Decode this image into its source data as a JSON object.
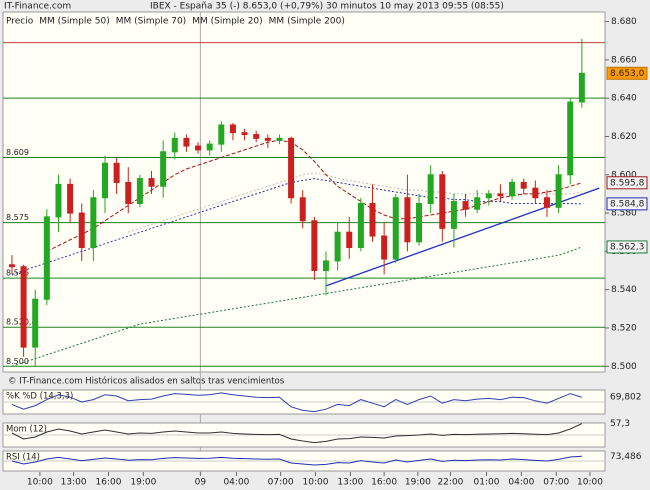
{
  "chart_data": {
    "type": "candlestick",
    "site": "IT-Finance.com",
    "title": "IBEX - España 35 (-)   8.653,0 (+0,79%)    30 minutos   10 may 2013 09:55 (08:55)",
    "footer": "© IT-Finance.com   Históricos alisados en saltos tras vencimientos",
    "price_name": "Precio",
    "up_color": "#22a822",
    "down_color": "#cc2020",
    "last_label": "8.653,0",
    "xlim": [
      -0.77,
      50.99
    ],
    "ylim": [
      8.497,
      8.685
    ],
    "yticks": [
      {
        "value": 8.5,
        "label": "8.500"
      },
      {
        "value": 8.52,
        "label": "8.520"
      },
      {
        "value": 8.54,
        "label": "8.540"
      },
      {
        "value": 8.56,
        "label": "8.560"
      },
      {
        "value": 8.58,
        "label": "8.580"
      },
      {
        "value": 8.6,
        "label": "8.600"
      },
      {
        "value": 8.62,
        "label": "8.620"
      },
      {
        "value": 8.64,
        "label": "8.640"
      },
      {
        "value": 8.66,
        "label": "8.660"
      },
      {
        "value": 8.68,
        "label": "8.680"
      }
    ],
    "xticks": [
      {
        "value": 2.4,
        "label": "10:00"
      },
      {
        "value": 5.3,
        "label": "13:00"
      },
      {
        "value": 8.3,
        "label": "16:00"
      },
      {
        "value": 11.3,
        "label": "19:00"
      },
      {
        "value": 16.2,
        "label": "09"
      },
      {
        "value": 19.3,
        "label": "04:00"
      },
      {
        "value": 23.1,
        "label": "07:00"
      },
      {
        "value": 26.1,
        "label": "10:00"
      },
      {
        "value": 29.1,
        "label": "13:00"
      },
      {
        "value": 32,
        "label": "16:00"
      },
      {
        "value": 34.9,
        "label": "19:00"
      },
      {
        "value": 37.7,
        "label": "22:00"
      },
      {
        "value": 40.8,
        "label": "01:00"
      },
      {
        "value": 43.8,
        "label": "04:00"
      },
      {
        "value": 46.8,
        "label": "07:00"
      },
      {
        "value": 49.7,
        "label": "10:00"
      }
    ],
    "levels": [
      {
        "value": 8.669,
        "color": "#c04040"
      },
      {
        "value": 8.64,
        "color": "#208020"
      },
      {
        "value": 8.609,
        "label": "8.609",
        "color": "#208020"
      },
      {
        "value": 8.575,
        "label": "8.575",
        "color": "#208020"
      },
      {
        "value": 8.546,
        "label": "8.546",
        "color": "#208020"
      },
      {
        "value": 8.5204,
        "label": "8.520,4",
        "color": "#208020"
      },
      {
        "value": 8.5,
        "label": "8.500",
        "color": "#208020"
      }
    ],
    "open": [
      8.553,
      8.552,
      8.51,
      8.535,
      8.578,
      8.595,
      8.58,
      8.562,
      8.588,
      8.606,
      8.596,
      8.585,
      8.598,
      8.594,
      8.612,
      8.619,
      8.615,
      8.613,
      8.616,
      8.626,
      8.622,
      8.621,
      8.619,
      8.618,
      8.619,
      8.588,
      8.576,
      8.55,
      8.555,
      8.57,
      8.562,
      8.585,
      8.568,
      8.556,
      8.588,
      8.565,
      8.585,
      8.6,
      8.572,
      8.586,
      8.582,
      8.588,
      8.59,
      8.589,
      8.596,
      8.593,
      8.588,
      8.583,
      8.6,
      8.638
    ],
    "high": [
      8.558,
      8.553,
      8.54,
      8.582,
      8.6,
      8.598,
      8.585,
      8.592,
      8.61,
      8.609,
      8.604,
      8.6,
      8.602,
      8.618,
      8.622,
      8.621,
      8.617,
      8.618,
      8.628,
      8.627,
      8.624,
      8.623,
      8.621,
      8.621,
      8.62,
      8.592,
      8.578,
      8.56,
      8.575,
      8.578,
      8.588,
      8.595,
      8.575,
      8.59,
      8.6,
      8.59,
      8.605,
      8.602,
      8.59,
      8.59,
      8.592,
      8.592,
      8.595,
      8.598,
      8.598,
      8.597,
      8.592,
      8.605,
      8.64,
      8.671
    ],
    "low": [
      8.548,
      8.505,
      8.5,
      8.532,
      8.57,
      8.575,
      8.555,
      8.555,
      8.58,
      8.59,
      8.58,
      8.583,
      8.59,
      8.588,
      8.608,
      8.612,
      8.611,
      8.61,
      8.612,
      8.618,
      8.618,
      8.617,
      8.614,
      8.616,
      8.585,
      8.572,
      8.545,
      8.537,
      8.55,
      8.556,
      8.56,
      8.565,
      8.548,
      8.554,
      8.56,
      8.563,
      8.58,
      8.565,
      8.562,
      8.578,
      8.58,
      8.584,
      8.586,
      8.587,
      8.59,
      8.585,
      8.578,
      8.58,
      8.595,
      8.635
    ],
    "close": [
      8.552,
      8.51,
      8.535,
      8.578,
      8.595,
      8.58,
      8.562,
      8.588,
      8.606,
      8.596,
      8.585,
      8.598,
      8.594,
      8.612,
      8.619,
      8.615,
      8.613,
      8.616,
      8.626,
      8.622,
      8.621,
      8.619,
      8.618,
      8.619,
      8.588,
      8.576,
      8.55,
      8.555,
      8.57,
      8.562,
      8.585,
      8.568,
      8.556,
      8.588,
      8.565,
      8.585,
      8.6,
      8.572,
      8.586,
      8.582,
      8.588,
      8.59,
      8.589,
      8.596,
      8.593,
      8.588,
      8.583,
      8.6,
      8.638,
      8.653
    ],
    "series": [
      {
        "name": "MM (Simple 50)",
        "color": "#bdbdbd",
        "dash": "2,2",
        "values": [
          null,
          null,
          null,
          null,
          null,
          null,
          null,
          null,
          null,
          null,
          8.57,
          8.572,
          8.574,
          8.576,
          8.578,
          8.58,
          8.582,
          8.584,
          8.586,
          8.588,
          8.59,
          8.592,
          8.594,
          8.596,
          8.598,
          8.6,
          8.601,
          8.6,
          8.598,
          8.597,
          8.596,
          8.595,
          8.594,
          8.593,
          8.592,
          8.592,
          8.591,
          8.591,
          8.59,
          8.59,
          8.59,
          8.59,
          8.59,
          8.59,
          8.59,
          8.59,
          8.59,
          8.59,
          8.59,
          8.591
        ]
      },
      {
        "name": "MM (Simple 70)",
        "color": "#2030b0",
        "dash": "2,2",
        "last_label": "8.584,8",
        "values": [
          8.548,
          8.55,
          8.552,
          8.554,
          8.556,
          8.558,
          8.56,
          8.562,
          8.564,
          8.566,
          8.568,
          8.57,
          8.572,
          8.574,
          8.576,
          8.578,
          8.58,
          8.582,
          8.584,
          8.586,
          8.588,
          8.59,
          8.592,
          8.594,
          8.596,
          8.597,
          8.598,
          8.597,
          8.596,
          8.595,
          8.594,
          8.593,
          8.592,
          8.591,
          8.59,
          8.589,
          8.588,
          8.588,
          8.587,
          8.587,
          8.586,
          8.586,
          8.586,
          8.585,
          8.585,
          8.585,
          8.585,
          8.585,
          8.585,
          8.5848
        ]
      },
      {
        "name": "MM (Simple 20)",
        "color": "#a01818",
        "dash": "4,2",
        "last_label": "8.595,8",
        "values": [
          null,
          null,
          null,
          8.56,
          8.563,
          8.566,
          8.569,
          8.572,
          8.576,
          8.58,
          8.584,
          8.588,
          8.592,
          8.596,
          8.6,
          8.603,
          8.605,
          8.607,
          8.609,
          8.611,
          8.613,
          8.615,
          8.617,
          8.618,
          8.617,
          8.613,
          8.607,
          8.6,
          8.594,
          8.59,
          8.586,
          8.582,
          8.579,
          8.577,
          8.577,
          8.578,
          8.579,
          8.58,
          8.581,
          8.582,
          8.584,
          8.586,
          8.588,
          8.589,
          8.59,
          8.59,
          8.591,
          8.592,
          8.594,
          8.5958
        ]
      },
      {
        "name": "MM (Simple 200)",
        "color": "#1a7a3a",
        "dash": "2,2",
        "last_label": "8.562,3",
        "values": [
          8.5,
          8.502,
          8.504,
          8.506,
          8.508,
          8.51,
          8.512,
          8.514,
          8.516,
          8.518,
          8.52,
          8.522,
          8.523,
          8.524,
          8.525,
          8.526,
          8.527,
          8.528,
          8.529,
          8.53,
          8.531,
          8.532,
          8.533,
          8.534,
          8.535,
          8.536,
          8.537,
          8.538,
          8.539,
          8.54,
          8.541,
          8.542,
          8.543,
          8.544,
          8.545,
          8.546,
          8.547,
          8.548,
          8.549,
          8.55,
          8.551,
          8.552,
          8.553,
          8.554,
          8.555,
          8.556,
          8.557,
          8.558,
          8.56,
          8.5623
        ]
      }
    ],
    "trendline": {
      "color": "#2030c0",
      "x": [
        27,
        50.5
      ],
      "y": [
        8.542,
        8.593
      ]
    },
    "indicators": [
      {
        "name": "%K %D (14,3,3)",
        "ylim": [
          0,
          100
        ],
        "color": "#3040b0",
        "last": 69.802,
        "last_label": "69,802",
        "values": [
          40,
          20,
          35,
          60,
          80,
          70,
          50,
          60,
          80,
          75,
          55,
          60,
          62,
          75,
          85,
          82,
          78,
          80,
          88,
          80,
          75,
          70,
          68,
          70,
          30,
          15,
          10,
          20,
          40,
          35,
          60,
          45,
          30,
          60,
          40,
          60,
          75,
          45,
          60,
          55,
          62,
          65,
          60,
          70,
          68,
          55,
          45,
          65,
          85,
          69.802
        ]
      },
      {
        "name": "Mom (12)",
        "ylim": [
          -60,
          60
        ],
        "color": "#303030",
        "last": 57.3,
        "last_label": "57,3",
        "values": [
          10,
          -20,
          -10,
          15,
          30,
          20,
          5,
          15,
          25,
          15,
          5,
          10,
          8,
          15,
          20,
          15,
          10,
          10,
          15,
          8,
          5,
          3,
          2,
          3,
          -20,
          -30,
          -38,
          -32,
          -20,
          -18,
          -10,
          -12,
          -15,
          -5,
          -3,
          0,
          5,
          -2,
          3,
          2,
          4,
          5,
          6,
          8,
          6,
          4,
          2,
          10,
          30,
          57.3
        ]
      },
      {
        "name": "RSI (14)",
        "ylim": [
          0,
          100
        ],
        "color": "#2030b0",
        "last": 73.486,
        "last_label": "73,486",
        "values": [
          50,
          35,
          45,
          60,
          68,
          60,
          52,
          58,
          65,
          60,
          54,
          57,
          56,
          63,
          67,
          65,
          63,
          64,
          68,
          64,
          62,
          60,
          59,
          60,
          40,
          35,
          30,
          33,
          42,
          40,
          52,
          45,
          40,
          55,
          45,
          53,
          60,
          48,
          54,
          52,
          55,
          56,
          55,
          60,
          57,
          53,
          50,
          58,
          70,
          73.486
        ]
      }
    ]
  }
}
